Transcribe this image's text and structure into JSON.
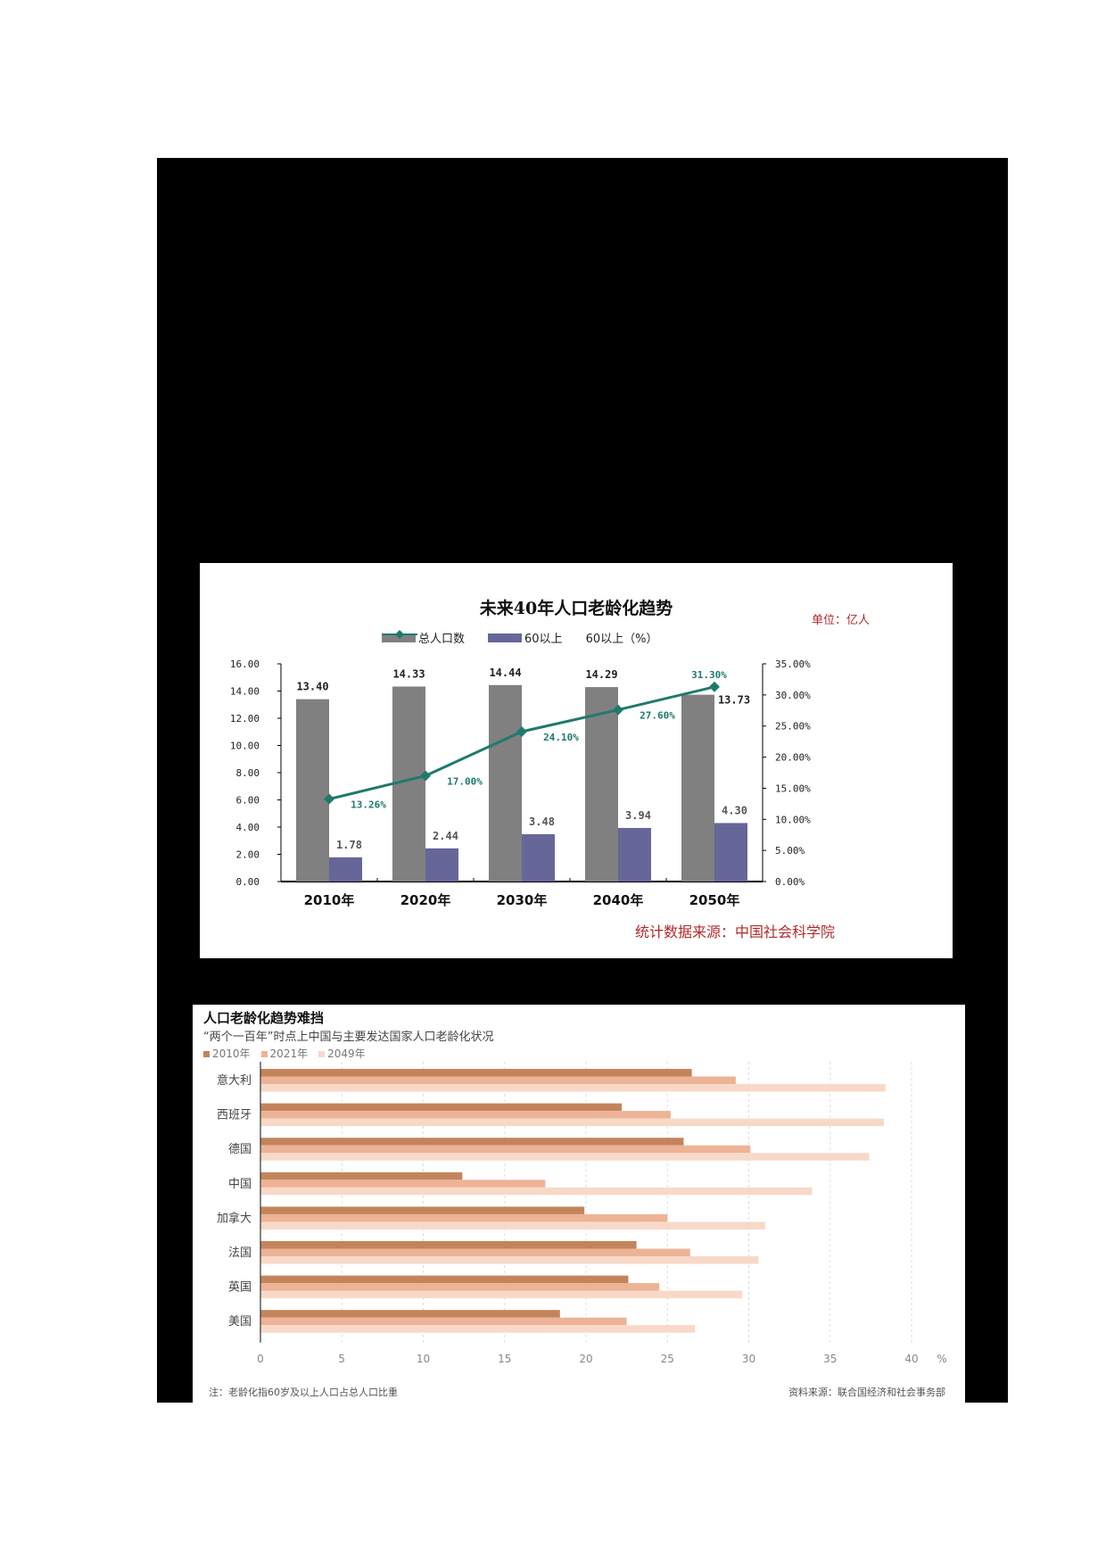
{
  "chart_data": [
    {
      "type": "bar",
      "title": "未来40年人口老龄化趋势",
      "unit_label": "单位：亿人",
      "source": "统计数据来源：中国社会科学院",
      "categories": [
        "2010年",
        "2020年",
        "2030年",
        "2040年",
        "2050年"
      ],
      "series": [
        {
          "name": "总人口数",
          "type": "bar",
          "axis": "left",
          "color": "#808080",
          "values": [
            13.4,
            14.33,
            14.44,
            14.29,
            13.73
          ],
          "labels": [
            "13.40",
            "14.33",
            "14.44",
            "14.29",
            "13.73"
          ]
        },
        {
          "name": "60以上",
          "type": "bar",
          "axis": "left",
          "color": "#666699",
          "values": [
            1.78,
            2.44,
            3.48,
            3.94,
            4.3
          ],
          "labels": [
            "1.78",
            "2.44",
            "3.48",
            "3.94",
            "4.30"
          ]
        },
        {
          "name": "60以上（%）",
          "type": "line",
          "axis": "right",
          "color": "#1f7a6e",
          "values": [
            13.26,
            17.0,
            24.1,
            27.6,
            31.3
          ],
          "labels": [
            "13.26%",
            "17.00%",
            "24.10%",
            "27.60%",
            "31.30%"
          ]
        }
      ],
      "ylim": [
        0,
        16
      ],
      "yticks": [
        "0.00",
        "2.00",
        "4.00",
        "6.00",
        "8.00",
        "10.00",
        "12.00",
        "14.00",
        "16.00"
      ],
      "y2lim": [
        0,
        35
      ],
      "y2ticks": [
        "0.00%",
        "5.00%",
        "10.00%",
        "15.00%",
        "20.00%",
        "25.00%",
        "30.00%",
        "35.00%"
      ],
      "legend_position": "top",
      "grid": false
    },
    {
      "type": "bar",
      "orientation": "horizontal",
      "title": "人口老龄化趋势难挡",
      "subtitle": "“两个一百年”时点上中国与主要发达国家人口老龄化状况",
      "categories": [
        "意大利",
        "西班牙",
        "德国",
        "中国",
        "加拿大",
        "法国",
        "英国",
        "美国"
      ],
      "series": [
        {
          "name": "2010年",
          "color": "#c4845b",
          "values": [
            26.5,
            22.2,
            26.0,
            12.4,
            19.9,
            23.1,
            22.6,
            18.4
          ]
        },
        {
          "name": "2021年",
          "color": "#ecb396",
          "values": [
            29.2,
            25.2,
            30.1,
            17.5,
            25.0,
            26.4,
            24.5,
            22.5
          ]
        },
        {
          "name": "2049年",
          "color": "#f8d9c8",
          "values": [
            38.4,
            38.3,
            37.4,
            33.9,
            31.0,
            30.6,
            29.6,
            26.7
          ]
        }
      ],
      "xlim": [
        0,
        40
      ],
      "xticks": [
        "0",
        "5",
        "10",
        "15",
        "20",
        "25",
        "30",
        "35",
        "40"
      ],
      "xlabel": "%",
      "note": "注：老龄化指60岁及以上人口占总人口比重",
      "source": "资料来源：联合国经济和社会事务部",
      "legend_position": "top-left",
      "grid": true
    }
  ]
}
